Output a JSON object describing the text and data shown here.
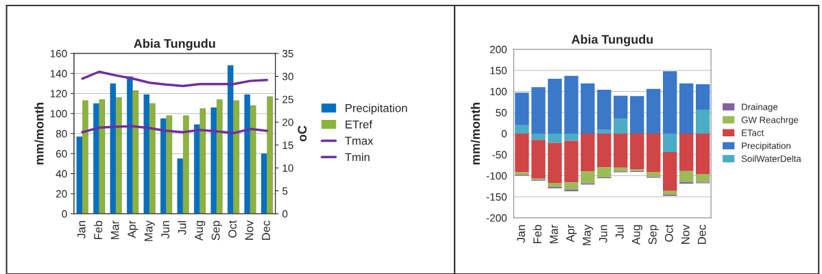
{
  "chart_data": [
    {
      "type": "bar",
      "title": "Abia Tungudu",
      "ylabel": "mm/month",
      "y2label": "oC",
      "categories": [
        "Jan",
        "Feb",
        "Mar",
        "Apr",
        "May",
        "Jun",
        "Jul",
        "Aug",
        "Sep",
        "Oct",
        "Nov",
        "Dec"
      ],
      "series": [
        {
          "name": "Precipitation",
          "color": "#0070c0",
          "values": [
            77,
            110,
            130,
            137,
            119,
            95,
            55,
            89,
            106,
            148,
            119,
            60
          ]
        },
        {
          "name": "ETref",
          "color": "#8db33a",
          "values": [
            113,
            114,
            116,
            123,
            110,
            98,
            98,
            105,
            114,
            113,
            108,
            117
          ]
        },
        {
          "name": "Tmax",
          "type": "line",
          "axis": "y2",
          "color": "#7030a0",
          "values": [
            29.5,
            31,
            30.2,
            29.5,
            28.6,
            28.2,
            27.9,
            28.3,
            28.3,
            28.3,
            29,
            29.2
          ]
        },
        {
          "name": "Tmin",
          "type": "line",
          "axis": "y2",
          "color": "#7030a0",
          "values": [
            17.8,
            18.8,
            19,
            19.1,
            18.7,
            18.1,
            17.8,
            18.3,
            18,
            17.6,
            18.5,
            18.1
          ]
        }
      ],
      "ylim": [
        0,
        160
      ],
      "yticks": [
        0,
        20,
        40,
        60,
        80,
        100,
        120,
        140,
        160
      ],
      "y2lim": [
        0,
        35
      ],
      "y2ticks": [
        0,
        5,
        10,
        15,
        20,
        25,
        30,
        35
      ],
      "grid": "y",
      "legend": "right",
      "marker": "none"
    },
    {
      "type": "bar",
      "title": "Abia Tungudu",
      "ylabel": "mm/month",
      "stacked": true,
      "categories": [
        "Jan",
        "Feb",
        "Mar",
        "Apr",
        "May",
        "Jun",
        "Jul",
        "Aug",
        "Sep",
        "Oct",
        "Nov",
        "Dec"
      ],
      "series": [
        {
          "name": "SoilWaterDelta",
          "color": "#4bacc6",
          "values": [
            20,
            -15,
            -22,
            -17,
            0,
            9,
            35,
            0,
            0,
            -44,
            0,
            57
          ]
        },
        {
          "name": "Precipitation",
          "color": "#3a78c9",
          "values": [
            77,
            110,
            130,
            137,
            119,
            95,
            55,
            89,
            106,
            148,
            119,
            60
          ]
        },
        {
          "name": "ETact",
          "color": "#d04545",
          "values": [
            -92,
            -92,
            -95,
            -99,
            -90,
            -80,
            -81,
            -85,
            -92,
            -92,
            -89,
            -96
          ]
        },
        {
          "name": "GW Reachrge",
          "color": "#9bbb59",
          "values": [
            -6,
            -3,
            -10,
            -17,
            -28,
            -24,
            -9,
            -4,
            -11,
            -9,
            -26,
            -20
          ]
        },
        {
          "name": "Drainage",
          "color": "#8064a2",
          "values": [
            -2,
            -2,
            -3,
            -4,
            -3,
            -2,
            -2,
            -2,
            -2,
            -3,
            -4,
            -2
          ]
        }
      ],
      "ylim": [
        -200,
        200
      ],
      "yticks": [
        -200,
        -150,
        -100,
        -50,
        0,
        50,
        100,
        150,
        200
      ],
      "grid": "y",
      "legend": "right"
    }
  ]
}
